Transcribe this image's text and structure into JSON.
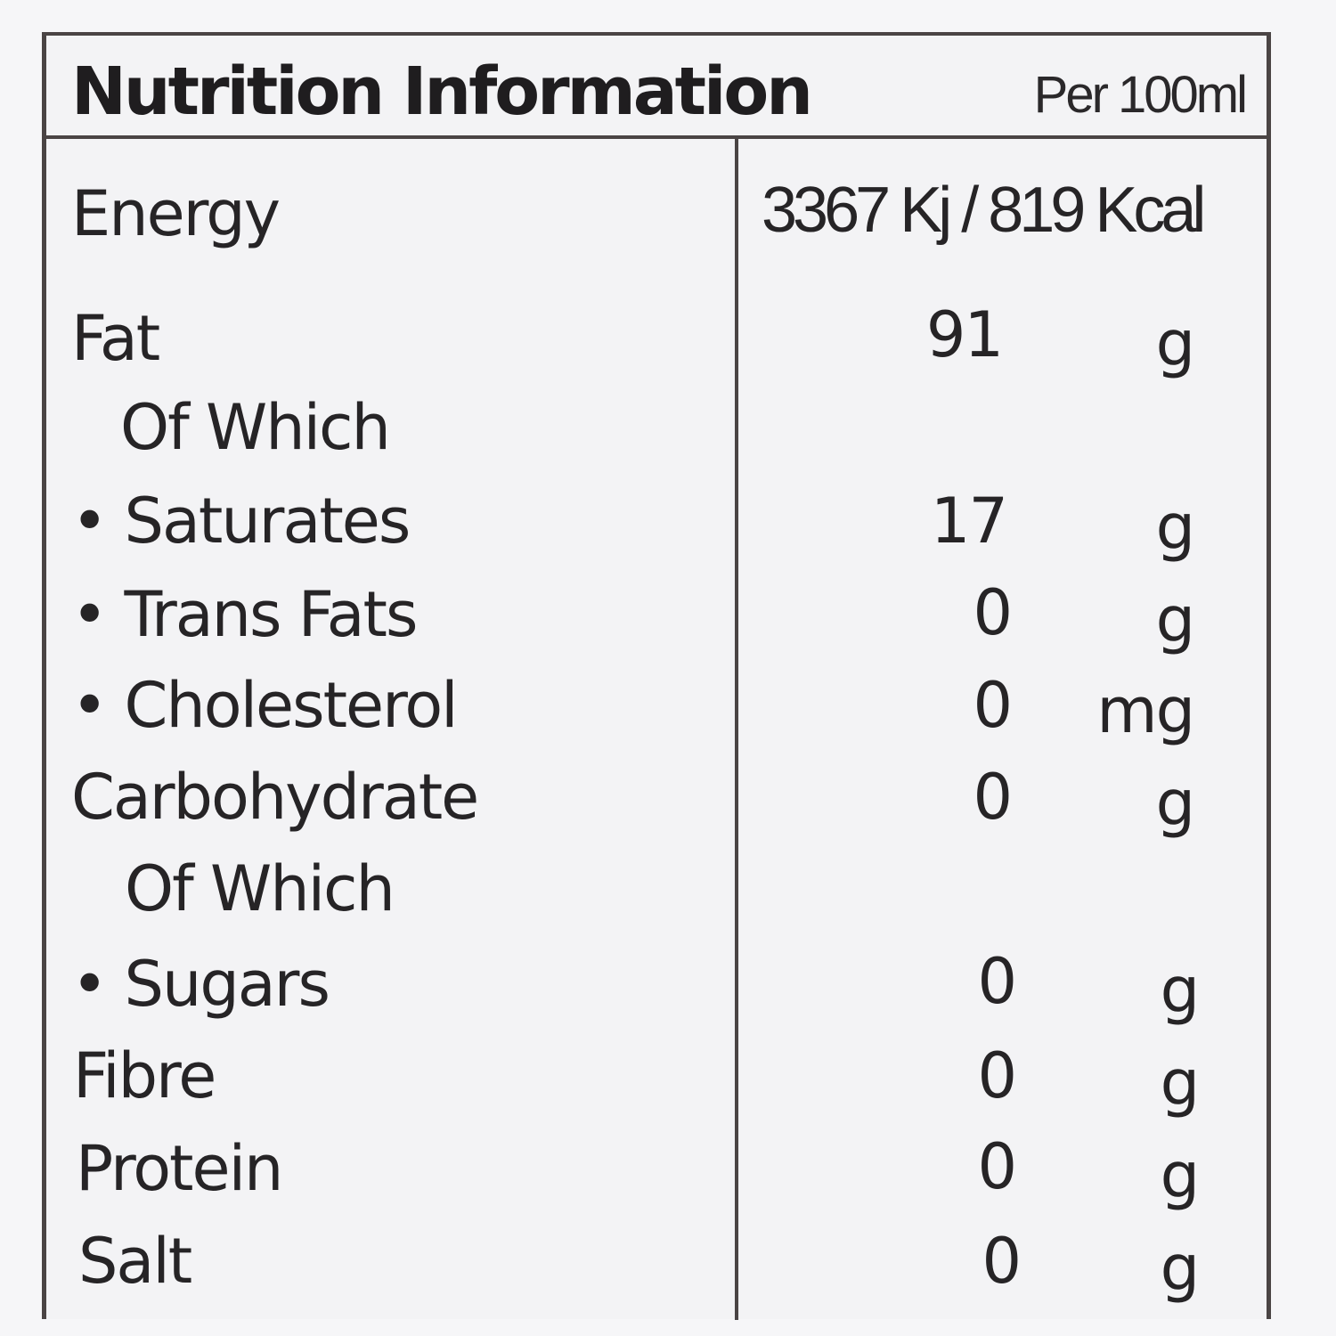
{
  "header": {
    "title": "Nutrition Information",
    "per": "Per 100ml"
  },
  "energy": {
    "label": "Energy",
    "value": "3367 Kj / 819 Kcal"
  },
  "rows": [
    {
      "label": "Fat",
      "value": "91",
      "unit": "g"
    },
    {
      "label": "Of Which",
      "value": "",
      "unit": ""
    },
    {
      "label": "• Saturates",
      "value": "17",
      "unit": "g"
    },
    {
      "label": "• Trans Fats",
      "value": "0",
      "unit": "g"
    },
    {
      "label": "• Cholesterol",
      "value": "0",
      "unit": "mg"
    },
    {
      "label": "Carbohydrate",
      "value": "0",
      "unit": "g"
    },
    {
      "label": "Of Which",
      "value": "",
      "unit": ""
    },
    {
      "label": "• Sugars",
      "value": "0",
      "unit": "g"
    },
    {
      "label": "Fibre",
      "value": "0",
      "unit": "g"
    },
    {
      "label": "Protein",
      "value": "0",
      "unit": "g"
    },
    {
      "label": "Salt",
      "value": "0",
      "unit": "g"
    }
  ]
}
